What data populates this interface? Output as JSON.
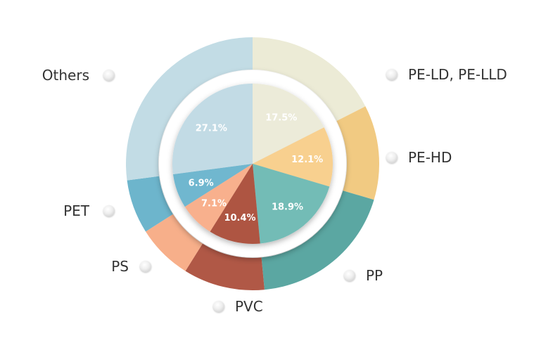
{
  "chart_data": {
    "type": "pie",
    "variant": "nested-donut",
    "categories": [
      "PE-LD, PE-LLD",
      "PE-HD",
      "PP",
      "PVC",
      "PS",
      "PET",
      "Others"
    ],
    "values": [
      17.5,
      12.1,
      18.9,
      10.4,
      7.1,
      6.9,
      27.1
    ],
    "value_labels": [
      "17.5%",
      "12.1%",
      "18.9%",
      "10.4%",
      "7.1%",
      "6.9%",
      "27.1%"
    ],
    "colors": [
      "#ecebd6",
      "#f1ca82",
      "#5ba7a2",
      "#b05846",
      "#f7af8a",
      "#6db5cc",
      "#c2dce5"
    ],
    "inner_colors": [
      "#ecebd9",
      "#f8d08f",
      "#73bcb6",
      "#ae5543",
      "#f8b08d",
      "#6fb7cf",
      "#c2dbe5"
    ],
    "legend": {
      "marker": "grey-sphere",
      "items": [
        "PE-LD, PE-LLD",
        "PE-HD",
        "PP",
        "PVC",
        "PS",
        "PET",
        "Others"
      ]
    }
  }
}
